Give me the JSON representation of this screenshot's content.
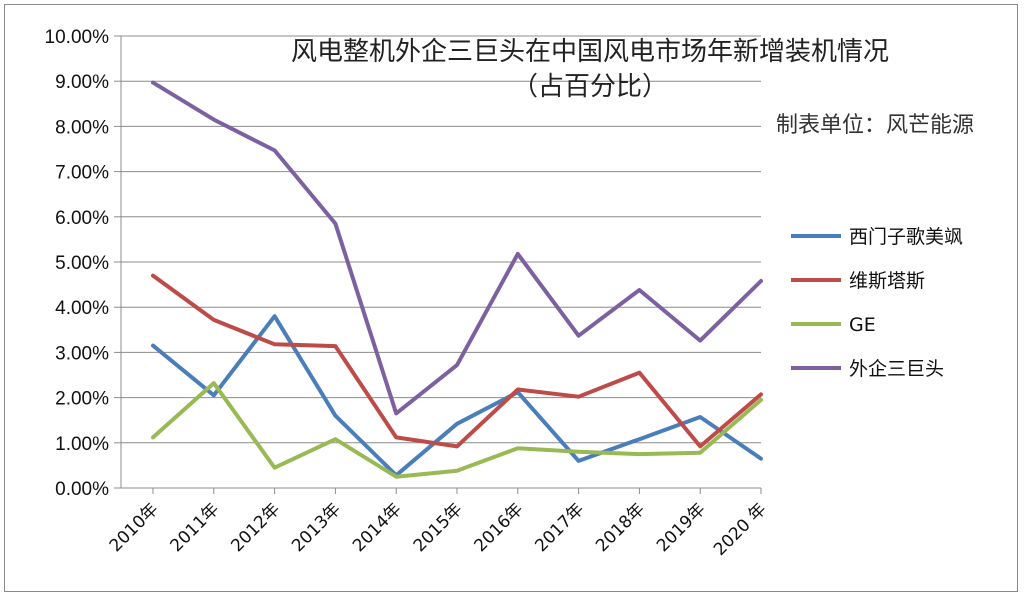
{
  "chart_data": {
    "type": "line",
    "title_line1": "风电整机外企三巨头在中国风电市场年新增装机情况",
    "title_line2": "（占百分比）",
    "unit_note": "制表单位：风芒能源",
    "categories": [
      "2010年",
      "2011年",
      "2012年",
      "2013年",
      "2014年",
      "2015年",
      "2016年",
      "2017年",
      "2018年",
      "2019年",
      "2020 年"
    ],
    "yticks": [
      "0.00%",
      "1.00%",
      "2.00%",
      "3.00%",
      "4.00%",
      "5.00%",
      "6.00%",
      "7.00%",
      "8.00%",
      "9.00%",
      "10.00%"
    ],
    "ylim": [
      0,
      10
    ],
    "grid": true,
    "legend_position": "right",
    "series": [
      {
        "name": "西门子歌美飒",
        "color": "#4a7ebb",
        "values": [
          3.15,
          2.05,
          3.8,
          1.6,
          0.28,
          1.42,
          2.12,
          0.6,
          1.08,
          1.57,
          0.65
        ]
      },
      {
        "name": "维斯塔斯",
        "color": "#be4b48",
        "values": [
          4.7,
          3.72,
          3.18,
          3.14,
          1.12,
          0.92,
          2.18,
          2.02,
          2.55,
          0.92,
          2.07
        ]
      },
      {
        "name": "GE",
        "color": "#98b954",
        "values": [
          1.12,
          2.32,
          0.45,
          1.08,
          0.25,
          0.38,
          0.88,
          0.8,
          0.75,
          0.78,
          1.95
        ]
      },
      {
        "name": "外企三巨头",
        "color": "#7d60a0",
        "values": [
          8.97,
          8.15,
          7.47,
          5.85,
          1.65,
          2.72,
          5.18,
          3.37,
          4.38,
          3.26,
          4.58
        ]
      }
    ]
  }
}
